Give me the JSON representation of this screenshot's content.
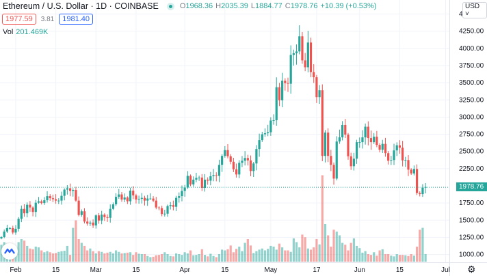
{
  "header": {
    "symbol": "Ethereum / U.S. Dollar · 1D · COINBASE",
    "open_label": "O",
    "open": "1968.36",
    "high_label": "H",
    "high": "2035.39",
    "low_label": "L",
    "low": "1884.77",
    "close_label": "C",
    "close": "1978.76",
    "change": "+10.39 (+0.53%)",
    "bid": "1977.59",
    "spread": "3.81",
    "ask": "1981.40",
    "volume_label": "Vol",
    "volume_value": "201.469K"
  },
  "currency": "USD ˅",
  "last_price_label": "1978.76",
  "colors": {
    "up": "#26a69a",
    "down": "#ef5350",
    "up_vol": "rgba(38,166,154,0.5)",
    "down_vol": "rgba(239,83,80,0.5)"
  },
  "icons": {
    "logo": "tradingview-logo-icon",
    "settings": "gear-icon"
  },
  "chart_data": {
    "type": "candlestick",
    "symbol": "ETHUSD",
    "interval": "1D",
    "start_date": "2021-01-27",
    "last_ohlc": {
      "open": 1968.36,
      "high": 2035.39,
      "low": 1884.77,
      "close": 1978.76
    },
    "ylim": [
      800,
      4600
    ],
    "yticks": [
      "4500.00",
      "4250.00",
      "4000.00",
      "3750.00",
      "3500.00",
      "3250.00",
      "3000.00",
      "2750.00",
      "2500.00",
      "2250.00",
      "1750.00",
      "1500.00",
      "1250.00",
      "1000.00"
    ],
    "ytick_values": [
      4500,
      4250,
      4000,
      3750,
      3500,
      3250,
      3000,
      2750,
      2500,
      2250,
      1750,
      1500,
      1250,
      1000
    ],
    "xticks": [
      {
        "label": "Feb",
        "index": 5
      },
      {
        "label": "15",
        "index": 19
      },
      {
        "label": "Mar",
        "index": 33
      },
      {
        "label": "15",
        "index": 47
      },
      {
        "label": "Apr",
        "index": 64
      },
      {
        "label": "15",
        "index": 78
      },
      {
        "label": "May",
        "index": 94
      },
      {
        "label": "17",
        "index": 110
      },
      {
        "label": "Jun",
        "index": 125
      },
      {
        "label": "15",
        "index": 139
      },
      {
        "label": "Jul",
        "index": 155
      }
    ],
    "open_first": 1230,
    "close": [
      1250,
      1330,
      1380,
      1380,
      1315,
      1370,
      1515,
      1660,
      1595,
      1720,
      1680,
      1615,
      1750,
      1770,
      1745,
      1785,
      1845,
      1815,
      1800,
      1780,
      1780,
      1850,
      1940,
      1960,
      1920,
      1935,
      1780,
      1570,
      1625,
      1475,
      1445,
      1460,
      1418,
      1565,
      1490,
      1575,
      1540,
      1530,
      1660,
      1725,
      1835,
      1870,
      1795,
      1825,
      1770,
      1925,
      1855,
      1795,
      1805,
      1820,
      1780,
      1810,
      1810,
      1780,
      1680,
      1670,
      1585,
      1590,
      1700,
      1715,
      1690,
      1820,
      1845,
      1920,
      1970,
      2140,
      2015,
      2085,
      2110,
      2115,
      1965,
      2085,
      2070,
      2135,
      2150,
      2140,
      2300,
      2430,
      2515,
      2425,
      2345,
      2235,
      2160,
      2330,
      2360,
      2400,
      2365,
      2210,
      2320,
      2530,
      2660,
      2745,
      2760,
      2775,
      2945,
      2950,
      3430,
      3240,
      3525,
      3490,
      3480,
      3900,
      3925,
      3950,
      4170,
      3820,
      3720,
      4080,
      3650,
      3575,
      3285,
      3385,
      2430,
      2770,
      2430,
      2300,
      2100,
      2640,
      2700,
      2880,
      2740,
      2425,
      2280,
      2390,
      2630,
      2630,
      2700,
      2855,
      2690,
      2630,
      2710,
      2590,
      2520,
      2605,
      2470,
      2360,
      2370,
      2510,
      2585,
      2550,
      2365,
      2370,
      2230,
      2175,
      2240,
      1890,
      1875,
      1968.36,
      1978.76
    ],
    "volume_k": [
      450,
      520,
      480,
      300,
      280,
      380,
      520,
      600,
      560,
      420,
      350,
      330,
      400,
      380,
      300,
      250,
      280,
      250,
      220,
      230,
      260,
      280,
      290,
      420,
      180,
      900,
      1100,
      600,
      500,
      420,
      300,
      350,
      280,
      220,
      280,
      260,
      220,
      240,
      260,
      220,
      300,
      260,
      220,
      230,
      240,
      250,
      180,
      250,
      210,
      200,
      200,
      150,
      120,
      130,
      170,
      180,
      200,
      250,
      200,
      150,
      140,
      220,
      200,
      180,
      250,
      220,
      300,
      170,
      180,
      200,
      330,
      180,
      140,
      210,
      150,
      120,
      200,
      320,
      300,
      330,
      430,
      250,
      340,
      400,
      280,
      500,
      600,
      430,
      230,
      280,
      320,
      350,
      300,
      340,
      420,
      400,
      320,
      480,
      380,
      300,
      300,
      260,
      620,
      520,
      380,
      720,
      650,
      350,
      320,
      380,
      600,
      460,
      2300,
      1000,
      700,
      400,
      850,
      800,
      700,
      500,
      450,
      300,
      500,
      620,
      420,
      360,
      240,
      280,
      200,
      180,
      250,
      160,
      300,
      330,
      200,
      200,
      160,
      140,
      200,
      180,
      180,
      170,
      150,
      200,
      160,
      400,
      850,
      900,
      201.469
    ]
  }
}
